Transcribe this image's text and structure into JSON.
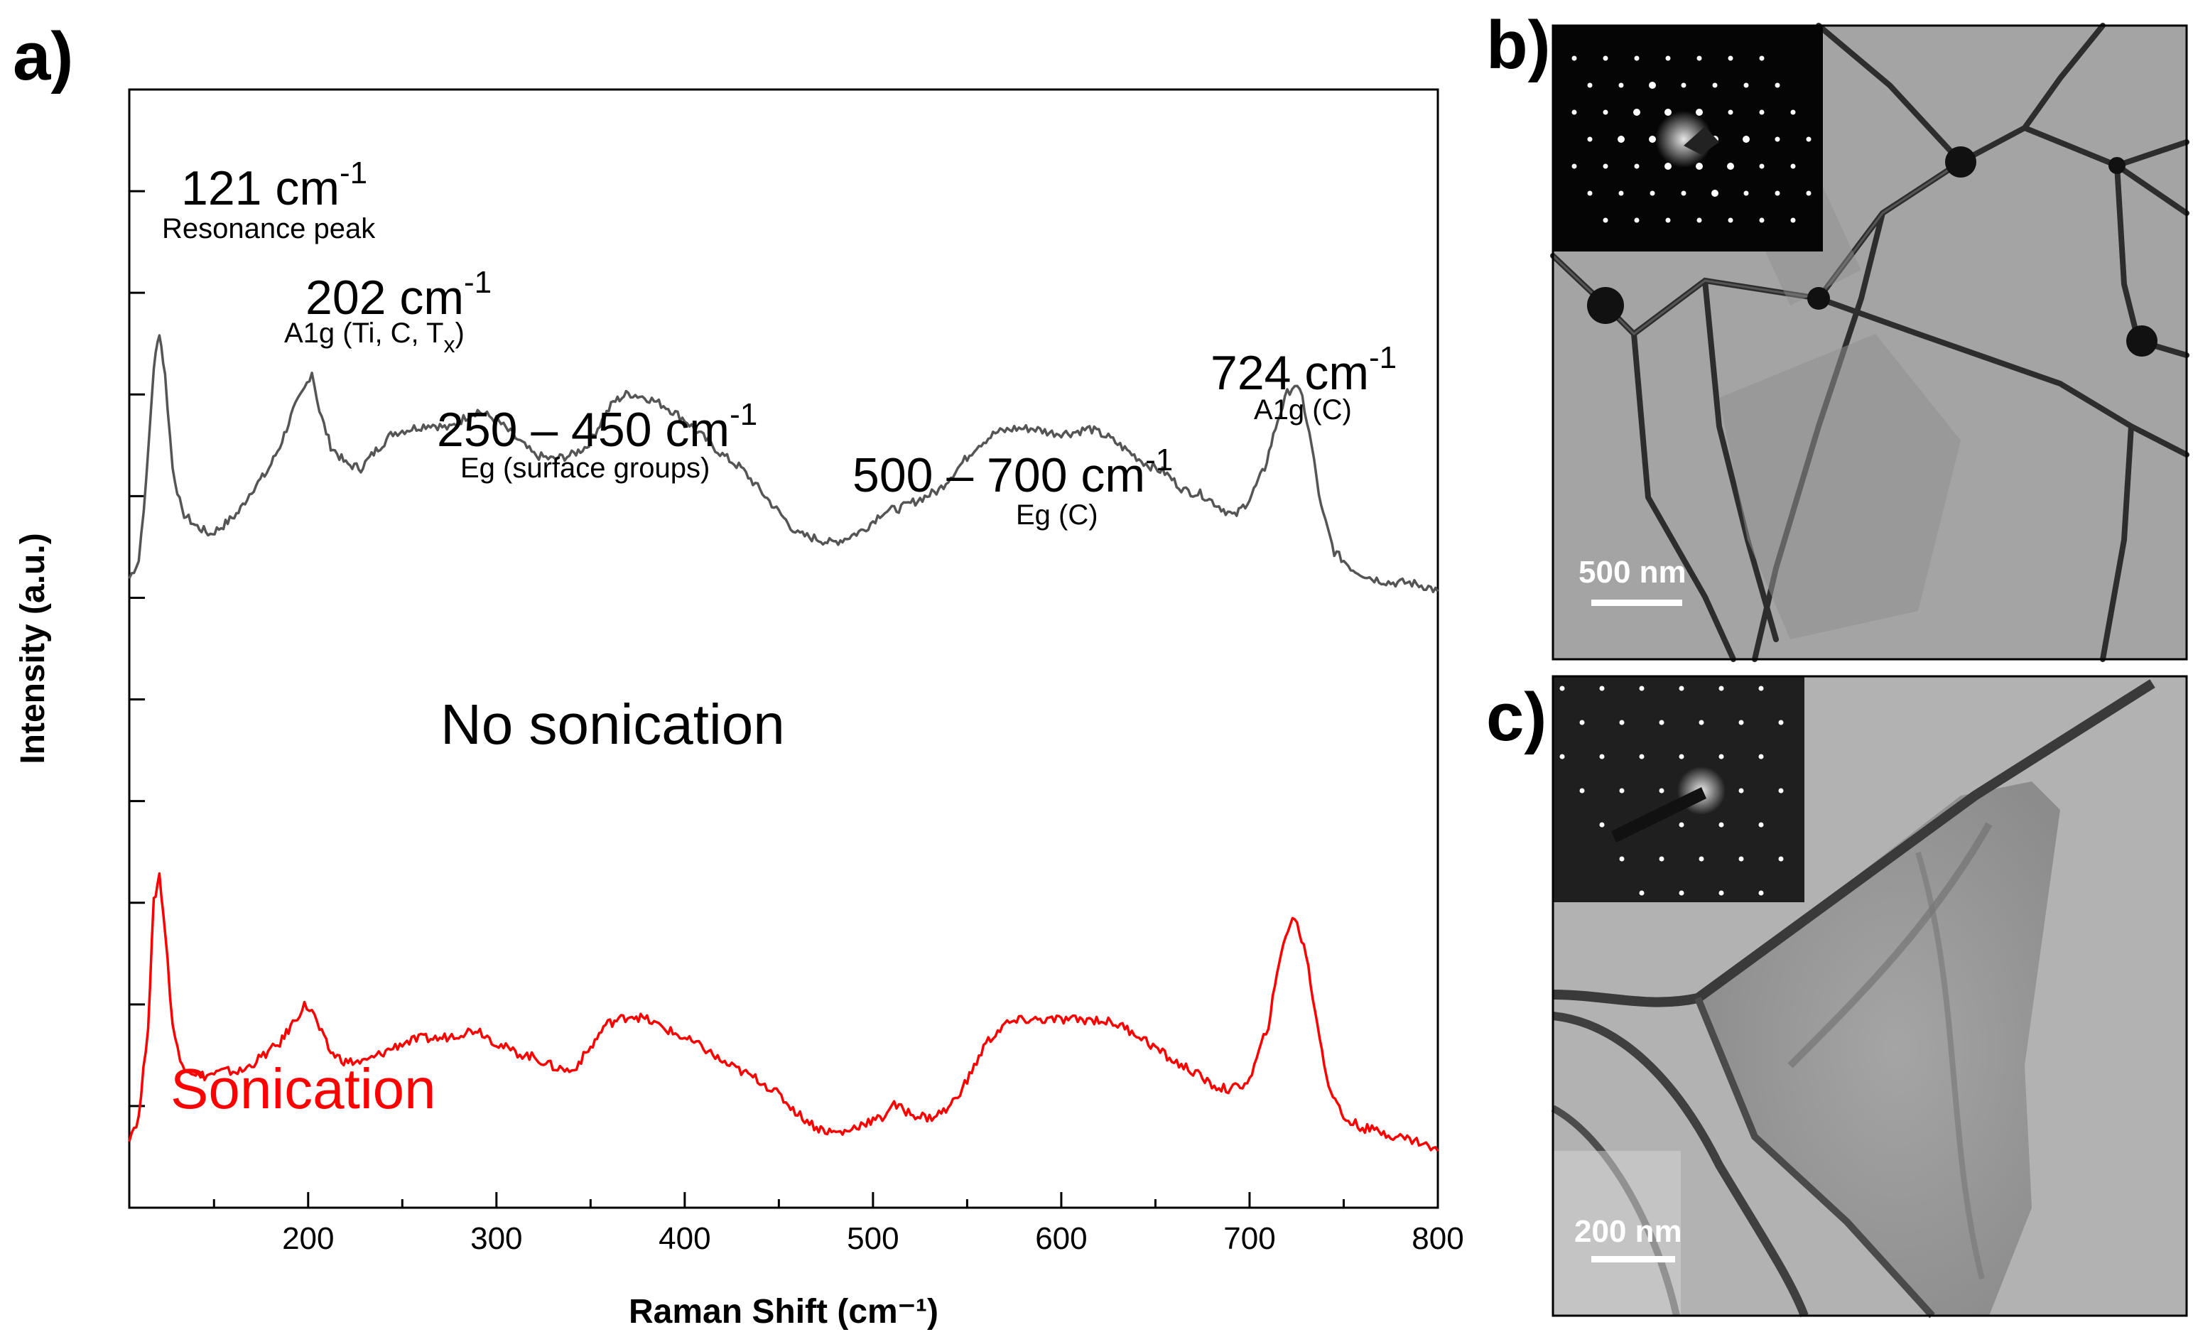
{
  "figure": {
    "panel_labels": {
      "a": "a)",
      "b": "b)",
      "c": "c)"
    },
    "scale_bars": {
      "b": "500 nm",
      "c": "200 nm"
    },
    "insets": {
      "b": "SAED diffraction pattern",
      "c": "SAED diffraction pattern"
    }
  },
  "chart_data": {
    "type": "line",
    "title": "",
    "xlabel": "Raman Shift (cm⁻¹)",
    "ylabel": "Intensity (a.u.)",
    "xlim": [
      105,
      800
    ],
    "ylim": [
      0,
      1
    ],
    "x_ticks": [
      200,
      300,
      400,
      500,
      600,
      700,
      800
    ],
    "y_ticks_labeled": false,
    "grid": false,
    "legend": "inline",
    "series": [
      {
        "name": "No sonication",
        "color": "#555555",
        "x": [
          105,
          110,
          114,
          118,
          121,
          124,
          128,
          133,
          140,
          148,
          155,
          163,
          170,
          178,
          185,
          192,
          198,
          202,
          206,
          212,
          220,
          228,
          236,
          245,
          255,
          265,
          275,
          285,
          290,
          300,
          310,
          320,
          330,
          340,
          348,
          355,
          362,
          370,
          380,
          390,
          400,
          410,
          420,
          430,
          440,
          450,
          460,
          470,
          478,
          485,
          495,
          505,
          515,
          525,
          535,
          545,
          555,
          565,
          575,
          585,
          595,
          605,
          615,
          625,
          635,
          645,
          655,
          665,
          675,
          685,
          692,
          700,
          708,
          715,
          720,
          724,
          728,
          733,
          738,
          745,
          755,
          765,
          775,
          785,
          795,
          800
        ],
        "values": [
          0.3,
          0.34,
          0.52,
          0.78,
          0.86,
          0.76,
          0.55,
          0.45,
          0.42,
          0.4,
          0.42,
          0.45,
          0.5,
          0.54,
          0.6,
          0.68,
          0.73,
          0.77,
          0.68,
          0.6,
          0.56,
          0.55,
          0.59,
          0.63,
          0.64,
          0.65,
          0.64,
          0.67,
          0.68,
          0.66,
          0.62,
          0.58,
          0.57,
          0.58,
          0.6,
          0.65,
          0.7,
          0.72,
          0.71,
          0.69,
          0.66,
          0.62,
          0.58,
          0.55,
          0.5,
          0.45,
          0.4,
          0.39,
          0.38,
          0.39,
          0.41,
          0.45,
          0.46,
          0.48,
          0.5,
          0.55,
          0.6,
          0.63,
          0.64,
          0.64,
          0.63,
          0.63,
          0.64,
          0.62,
          0.59,
          0.56,
          0.54,
          0.5,
          0.49,
          0.46,
          0.44,
          0.48,
          0.55,
          0.66,
          0.72,
          0.74,
          0.71,
          0.6,
          0.46,
          0.36,
          0.32,
          0.3,
          0.29,
          0.29,
          0.28,
          0.27
        ]
      },
      {
        "name": "Sonication",
        "color": "#ff0000",
        "x": [
          105,
          110,
          115,
          118,
          121,
          124,
          128,
          132,
          138,
          145,
          155,
          165,
          175,
          185,
          193,
          198,
          202,
          206,
          212,
          220,
          230,
          240,
          250,
          260,
          270,
          280,
          290,
          300,
          310,
          320,
          330,
          340,
          350,
          358,
          365,
          372,
          380,
          390,
          400,
          410,
          420,
          430,
          440,
          450,
          460,
          470,
          478,
          485,
          495,
          505,
          510,
          515,
          520,
          530,
          540,
          550,
          560,
          570,
          580,
          590,
          600,
          610,
          620,
          630,
          640,
          650,
          660,
          670,
          680,
          690,
          700,
          710,
          718,
          724,
          730,
          736,
          742,
          750,
          760,
          770,
          780,
          790,
          800
        ],
        "values": [
          0.06,
          0.1,
          0.3,
          0.56,
          0.62,
          0.5,
          0.3,
          0.22,
          0.2,
          0.19,
          0.2,
          0.2,
          0.23,
          0.26,
          0.31,
          0.34,
          0.33,
          0.29,
          0.24,
          0.22,
          0.22,
          0.24,
          0.26,
          0.27,
          0.27,
          0.28,
          0.29,
          0.26,
          0.24,
          0.23,
          0.21,
          0.2,
          0.25,
          0.3,
          0.31,
          0.32,
          0.31,
          0.29,
          0.27,
          0.25,
          0.22,
          0.2,
          0.18,
          0.15,
          0.11,
          0.08,
          0.07,
          0.07,
          0.09,
          0.1,
          0.13,
          0.12,
          0.11,
          0.1,
          0.12,
          0.18,
          0.26,
          0.3,
          0.31,
          0.31,
          0.31,
          0.31,
          0.31,
          0.3,
          0.28,
          0.25,
          0.22,
          0.2,
          0.17,
          0.16,
          0.18,
          0.3,
          0.48,
          0.53,
          0.45,
          0.3,
          0.17,
          0.1,
          0.08,
          0.07,
          0.06,
          0.05,
          0.03
        ]
      }
    ],
    "annotations": [
      {
        "title": "121 cm",
        "sup": "-1",
        "sub_label": "Resonance peak",
        "x": 121
      },
      {
        "title": "202 cm",
        "sup": "-1",
        "sub_label": "A1g (Ti, C, T",
        "sub_sub": "x",
        "sub_tail": ")",
        "x": 202
      },
      {
        "title": "250 – 450 cm",
        "sup": "-1",
        "sub_label": "Eg (surface groups)",
        "x": 350
      },
      {
        "title": "500 – 700 cm",
        "sup": "-1",
        "sub_label": "Eg (C)",
        "x": 600
      },
      {
        "title": "724 cm",
        "sup": "-1",
        "sub_label": "A1g (C)",
        "x": 724
      }
    ],
    "series_labels": [
      {
        "text": "No sonication",
        "series": "No sonication"
      },
      {
        "text": "Sonication",
        "series": "Sonication"
      }
    ]
  }
}
